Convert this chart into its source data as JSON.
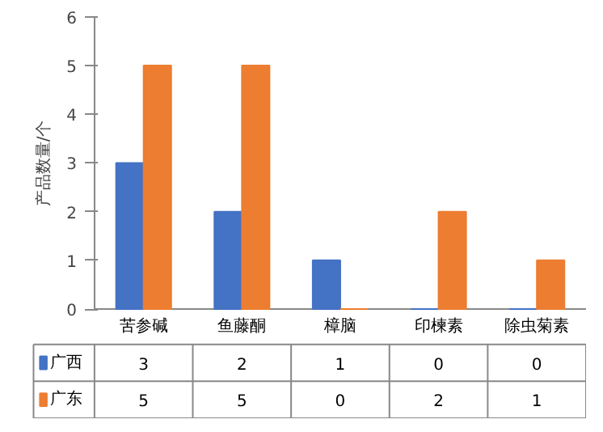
{
  "chart_data": {
    "type": "bar",
    "ylabel": "产品数量/个",
    "categories": [
      "苦参碱",
      "鱼藤酮",
      "樟脑",
      "印楝素",
      "除虫菊素"
    ],
    "series": [
      {
        "name": "广西",
        "color": "#4472c4",
        "values": [
          3,
          2,
          1,
          0,
          0
        ]
      },
      {
        "name": "广东",
        "color": "#ed7d31",
        "values": [
          5,
          5,
          0,
          2,
          1
        ]
      }
    ],
    "ylim": [
      0,
      6
    ],
    "yticks": [
      0,
      1,
      2,
      3,
      4,
      5,
      6
    ],
    "grid": false,
    "data_labels": true,
    "legend": "bottom"
  }
}
